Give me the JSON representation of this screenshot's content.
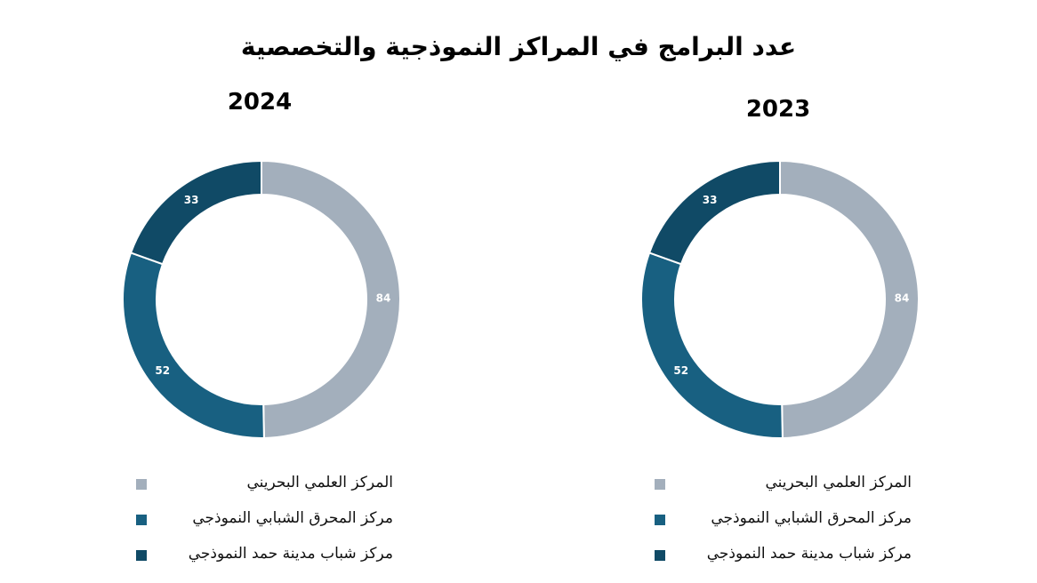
{
  "title": "عدد البرامج في المراكز النموذجية والتخصصية",
  "colors": {
    "bahraini_science_center": "#a3afbc",
    "youth_incubator_center": "#186081",
    "hamad_town_youth_center": "#104a66"
  },
  "chart_data": [
    {
      "type": "pie",
      "title": "2024",
      "categories": [
        "المركز العلمي البحريني",
        "مركز المحرق الشبابي النموذجي",
        "مركز شباب مدينة حمد النموذجي"
      ],
      "values": [
        84,
        52,
        33
      ],
      "legend": "bottom"
    },
    {
      "type": "pie",
      "title": "2023",
      "categories": [
        "المركز العلمي البحريني",
        "مركز المحرق الشبابي النموذجي",
        "مركز شباب مدينة حمد النموذجي"
      ],
      "values": [
        84,
        52,
        33
      ],
      "legend": "bottom"
    }
  ]
}
